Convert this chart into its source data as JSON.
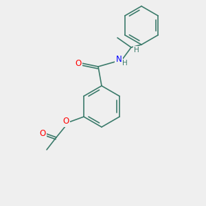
{
  "bg_color": "#efefef",
  "bond_color": "#3a7a6a",
  "double_bond_color": "#3a7a6a",
  "N_color": "#0000ff",
  "O_color": "#ff0000",
  "font_size": 7.5,
  "line_width": 1.2,
  "atoms": {
    "N": "N",
    "O_carbonyl1": "O",
    "O_ester": "O",
    "O_carbonyl2": "O",
    "H_on_N": "H",
    "H_on_C": "H"
  }
}
